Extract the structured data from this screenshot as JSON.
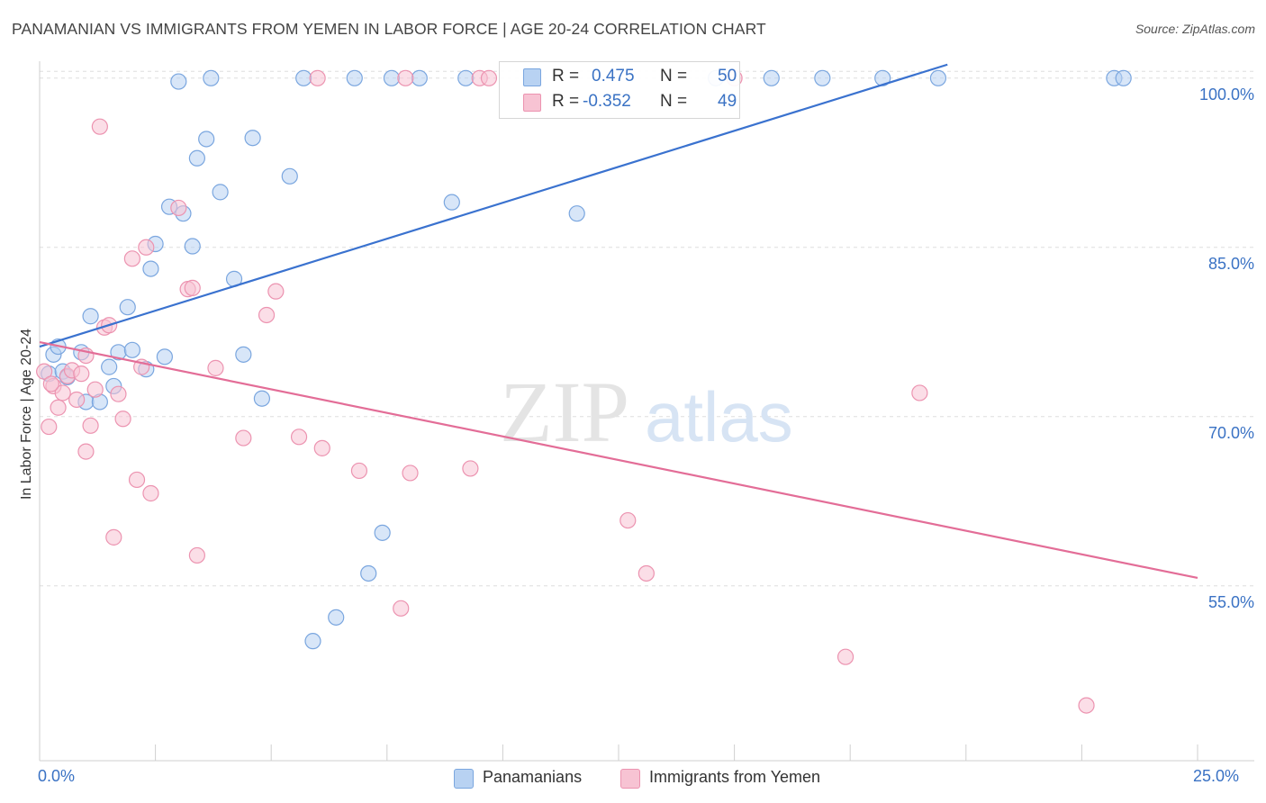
{
  "title": "PANAMANIAN VS IMMIGRANTS FROM YEMEN IN LABOR FORCE | AGE 20-24 CORRELATION CHART",
  "source": "Source: ZipAtlas.com",
  "watermark": {
    "zip": "ZIP",
    "atlas": "atlas"
  },
  "legend": {
    "rows": [
      {
        "r_label": "R =",
        "r_value": "0.475",
        "n_label": "N =",
        "n_value": "50"
      },
      {
        "r_label": "R =",
        "r_value": "-0.352",
        "n_label": "N =",
        "n_value": "49"
      }
    ]
  },
  "bottom_legend": [
    "Panamanians",
    "Immigrants from Yemen"
  ],
  "colors": {
    "blue_fill": "#b8d2f2",
    "blue_stroke": "#7aa6df",
    "blue_line": "#3a72cf",
    "pink_fill": "#f7c3d3",
    "pink_stroke": "#ec93b0",
    "pink_line": "#e36d97",
    "tick_text": "#3a72c4",
    "grid": "#dedede"
  },
  "chart_data": {
    "type": "scatter",
    "title": "PANAMANIAN VS IMMIGRANTS FROM YEMEN IN LABOR FORCE | AGE 20-24 CORRELATION CHART",
    "xlabel": "",
    "ylabel": "In Labor Force | Age 20-24",
    "xlim": [
      0,
      25
    ],
    "ylim": [
      39.5,
      101.5
    ],
    "x_tick_labels": [
      "0.0%",
      "25.0%"
    ],
    "y_ticks": [
      55,
      70,
      85,
      100
    ],
    "y_tick_labels": [
      "55.0%",
      "70.0%",
      "85.0%",
      "100.0%"
    ],
    "grid": true,
    "legend_position": "top-center",
    "series": [
      {
        "name": "Panamanians",
        "R": 0.475,
        "N": 50,
        "trend": {
          "x": [
            0,
            19.6
          ],
          "y": [
            76.2,
            101.2
          ]
        },
        "points": [
          [
            0.2,
            73.8
          ],
          [
            0.3,
            75.5
          ],
          [
            0.4,
            76.2
          ],
          [
            0.5,
            74.0
          ],
          [
            0.6,
            73.5
          ],
          [
            0.9,
            75.7
          ],
          [
            1.0,
            71.3
          ],
          [
            1.1,
            78.9
          ],
          [
            1.3,
            71.3
          ],
          [
            1.5,
            74.4
          ],
          [
            1.6,
            72.7
          ],
          [
            1.7,
            75.7
          ],
          [
            1.9,
            79.7
          ],
          [
            2.0,
            75.9
          ],
          [
            2.3,
            74.2
          ],
          [
            2.4,
            83.1
          ],
          [
            2.5,
            85.3
          ],
          [
            2.7,
            75.3
          ],
          [
            2.8,
            88.6
          ],
          [
            3.0,
            99.7
          ],
          [
            3.1,
            88.0
          ],
          [
            3.3,
            85.1
          ],
          [
            3.4,
            92.9
          ],
          [
            3.6,
            94.6
          ],
          [
            3.7,
            100.0
          ],
          [
            3.9,
            89.9
          ],
          [
            4.2,
            82.2
          ],
          [
            4.4,
            75.5
          ],
          [
            4.6,
            94.7
          ],
          [
            4.8,
            71.6
          ],
          [
            5.4,
            91.3
          ],
          [
            5.7,
            100.0
          ],
          [
            5.9,
            50.1
          ],
          [
            6.4,
            52.2
          ],
          [
            6.8,
            100.0
          ],
          [
            7.1,
            56.1
          ],
          [
            7.4,
            59.7
          ],
          [
            7.6,
            100.0
          ],
          [
            8.2,
            100.0
          ],
          [
            8.9,
            89.0
          ],
          [
            9.2,
            100.0
          ],
          [
            10.6,
            100.0
          ],
          [
            11.6,
            88.0
          ],
          [
            14.6,
            100.0
          ],
          [
            15.8,
            100.0
          ],
          [
            16.9,
            100.0
          ],
          [
            18.2,
            100.0
          ],
          [
            19.4,
            100.0
          ],
          [
            23.2,
            100.0
          ],
          [
            23.4,
            100.0
          ]
        ]
      },
      {
        "name": "Immigrants from Yemen",
        "R": -0.352,
        "N": 49,
        "trend": {
          "x": [
            0,
            25
          ],
          "y": [
            76.6,
            55.7
          ]
        },
        "points": [
          [
            0.1,
            74.0
          ],
          [
            0.2,
            69.1
          ],
          [
            0.3,
            72.7
          ],
          [
            0.4,
            70.8
          ],
          [
            0.5,
            72.1
          ],
          [
            0.6,
            73.6
          ],
          [
            0.7,
            74.1
          ],
          [
            0.8,
            71.5
          ],
          [
            0.9,
            73.8
          ],
          [
            1.0,
            66.9
          ],
          [
            1.1,
            69.2
          ],
          [
            1.2,
            72.4
          ],
          [
            1.3,
            95.7
          ],
          [
            1.4,
            77.9
          ],
          [
            1.5,
            78.1
          ],
          [
            1.6,
            59.3
          ],
          [
            1.7,
            72.0
          ],
          [
            1.8,
            69.8
          ],
          [
            2.0,
            84.0
          ],
          [
            2.1,
            64.4
          ],
          [
            2.2,
            74.4
          ],
          [
            2.3,
            85.0
          ],
          [
            2.4,
            63.2
          ],
          [
            3.0,
            88.5
          ],
          [
            3.2,
            81.3
          ],
          [
            3.3,
            81.4
          ],
          [
            3.4,
            57.7
          ],
          [
            3.8,
            74.3
          ],
          [
            4.4,
            68.1
          ],
          [
            4.9,
            79.0
          ],
          [
            5.1,
            81.1
          ],
          [
            5.6,
            68.2
          ],
          [
            6.0,
            100.0
          ],
          [
            6.1,
            67.2
          ],
          [
            6.9,
            65.2
          ],
          [
            7.8,
            53.0
          ],
          [
            7.9,
            100.0
          ],
          [
            8.0,
            65.0
          ],
          [
            9.3,
            65.4
          ],
          [
            9.5,
            100.0
          ],
          [
            9.7,
            100.0
          ],
          [
            12.7,
            60.8
          ],
          [
            13.1,
            56.1
          ],
          [
            15.0,
            100.0
          ],
          [
            17.4,
            48.7
          ],
          [
            19.0,
            72.1
          ],
          [
            22.6,
            44.4
          ],
          [
            0.25,
            72.9
          ],
          [
            1.0,
            75.4
          ]
        ]
      }
    ]
  }
}
